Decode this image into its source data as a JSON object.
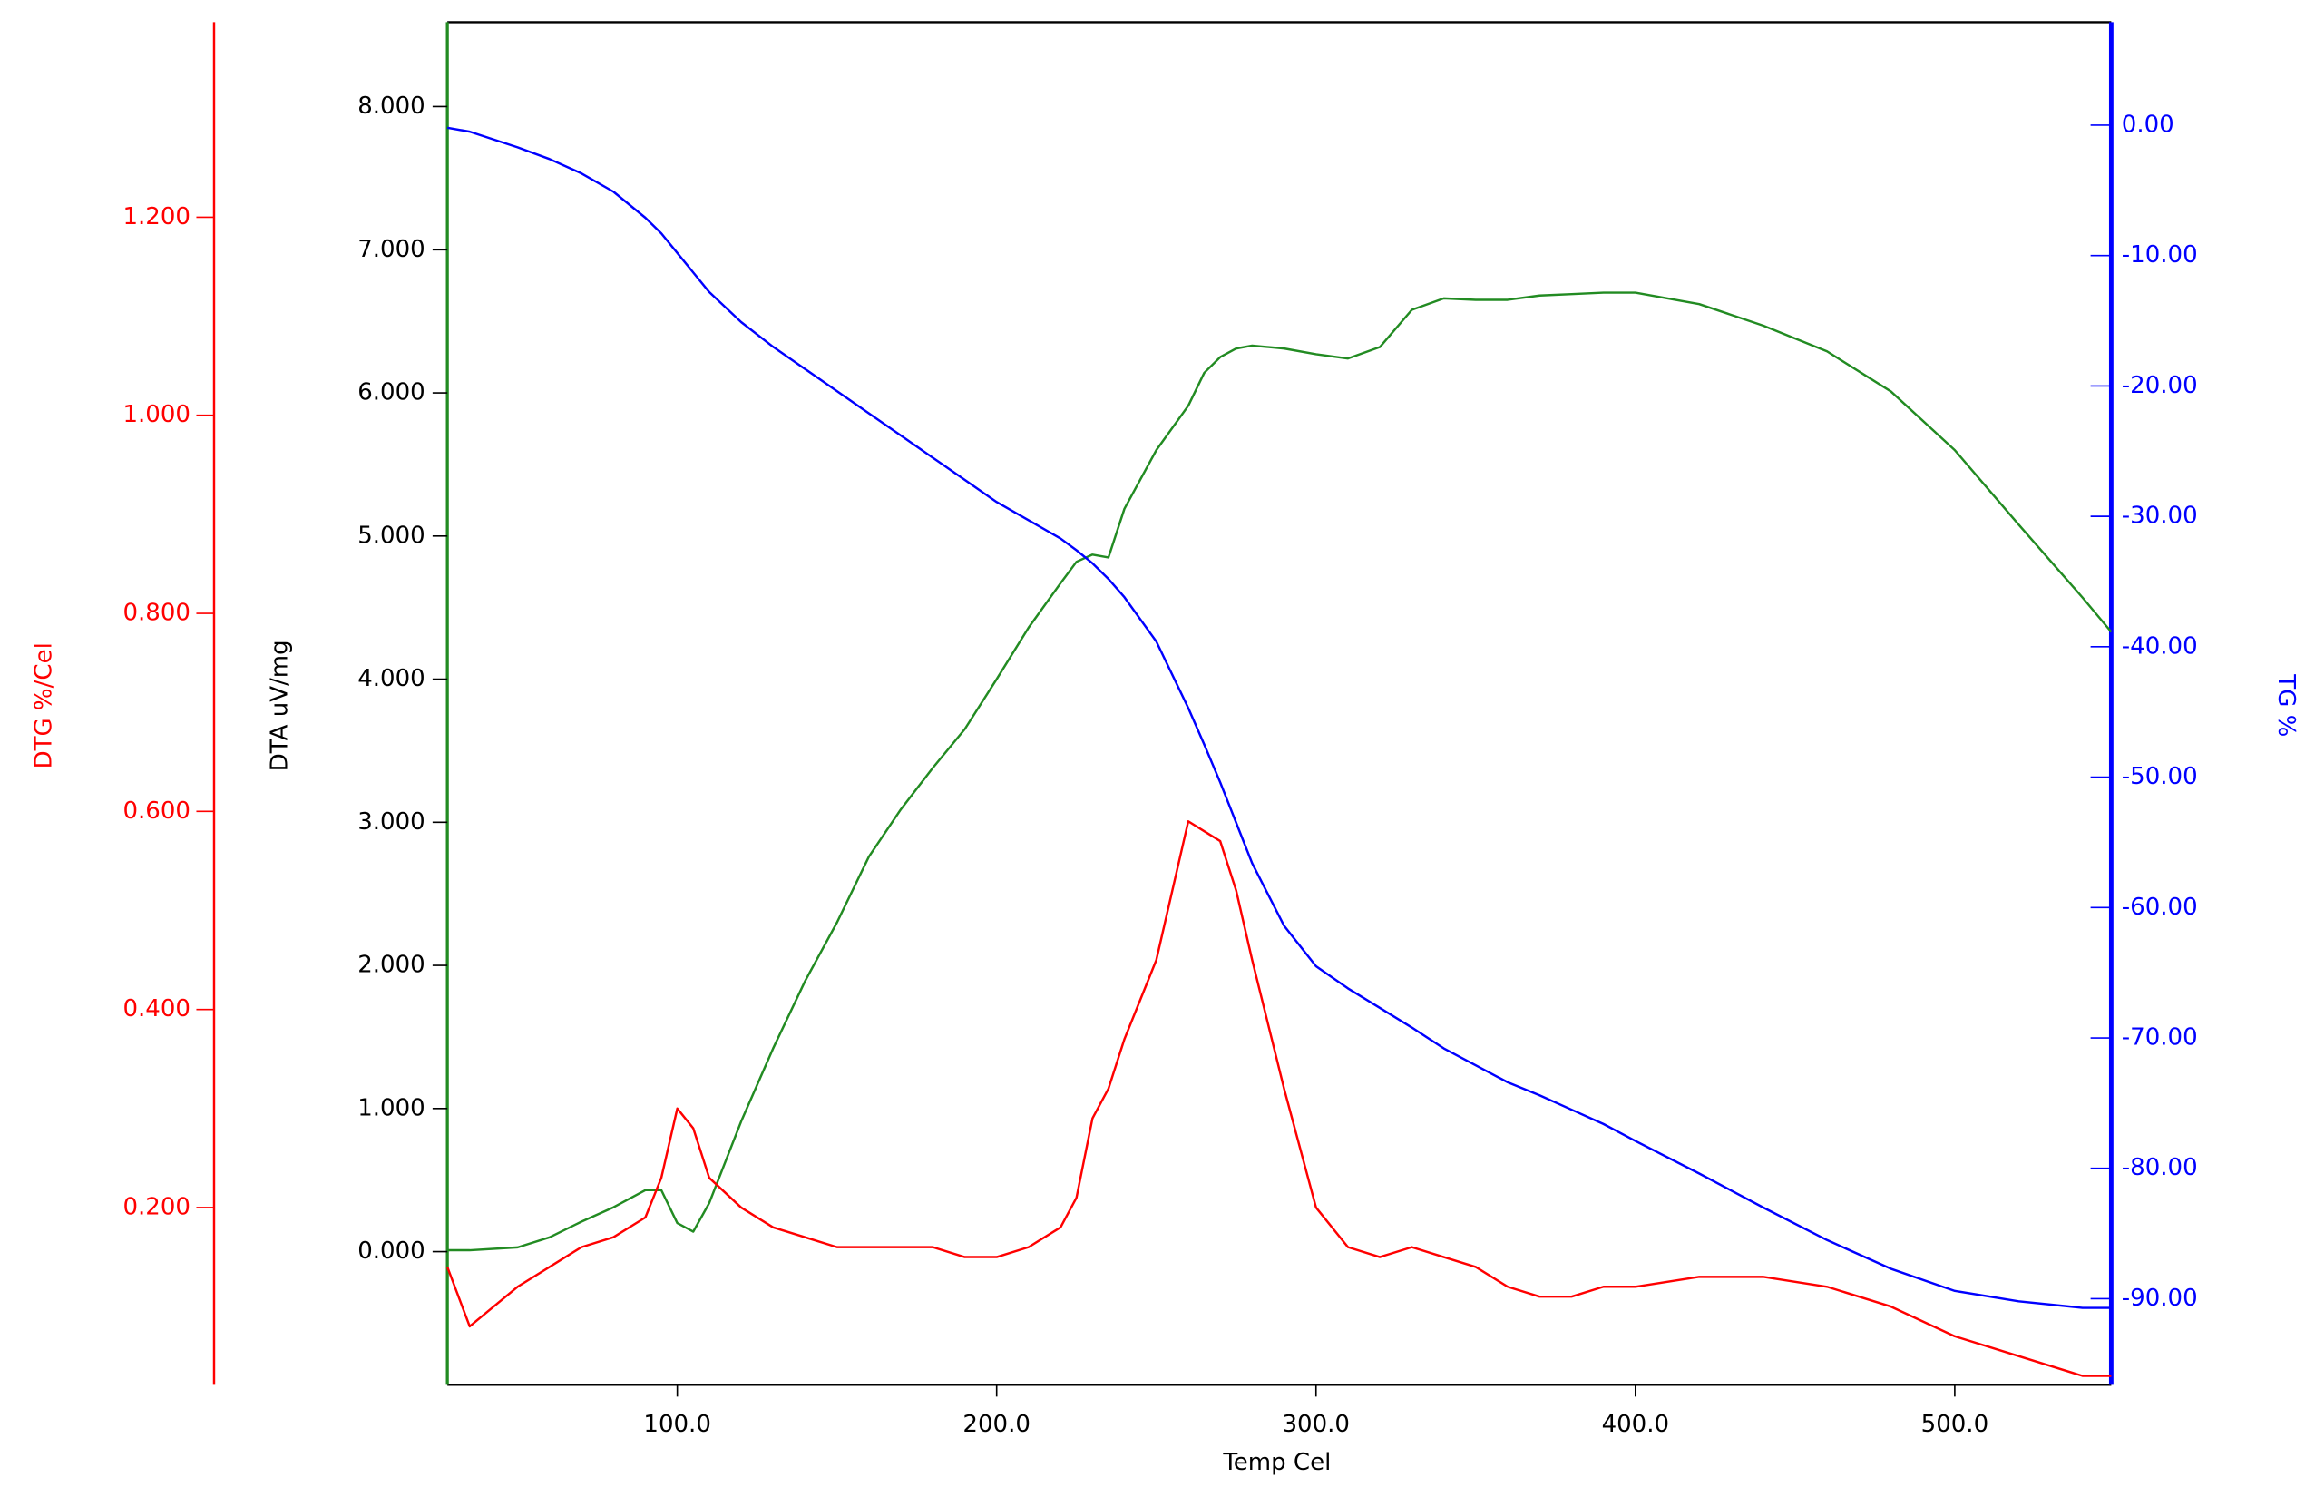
{
  "chart_data": {
    "type": "line",
    "x_label": "Temp Cel",
    "y_label": "DTA uV/mg",
    "y2_label": "TG %",
    "y3_label": "DTG %/Cel",
    "x": [
      28,
      35,
      50,
      60,
      70,
      80,
      90,
      95,
      100,
      105,
      110,
      120,
      130,
      140,
      150,
      160,
      170,
      180,
      190,
      200,
      210,
      220,
      225,
      230,
      235,
      240,
      250,
      260,
      265,
      270,
      275,
      280,
      290,
      300,
      310,
      320,
      330,
      340,
      350,
      360,
      370,
      380,
      390,
      400,
      420,
      440,
      460,
      480,
      500,
      520,
      540,
      549
    ],
    "xlim": [
      28,
      549
    ],
    "xticks": [
      {
        "value": 100,
        "label": "100.0"
      },
      {
        "value": 200,
        "label": "200.0"
      },
      {
        "value": 300,
        "label": "300.0"
      },
      {
        "value": 400,
        "label": "400.0"
      },
      {
        "value": 500,
        "label": "500.0"
      }
    ],
    "ylim": [
      -0.93,
      8.59
    ],
    "yticks": [
      {
        "value": 0,
        "label": "0.000"
      },
      {
        "value": 1,
        "label": "1.000"
      },
      {
        "value": 2,
        "label": "2.000"
      },
      {
        "value": 3,
        "label": "3.000"
      },
      {
        "value": 4,
        "label": "4.000"
      },
      {
        "value": 5,
        "label": "5.000"
      },
      {
        "value": 6,
        "label": "6.000"
      },
      {
        "value": 7,
        "label": "7.000"
      },
      {
        "value": 8,
        "label": "8.000"
      }
    ],
    "y2lim": [
      -96.6,
      7.9
    ],
    "y2ticks": [
      {
        "value": 0,
        "label": "0.00"
      },
      {
        "value": -10,
        "label": "-10.00"
      },
      {
        "value": -20,
        "label": "-20.00"
      },
      {
        "value": -30,
        "label": "-30.00"
      },
      {
        "value": -40,
        "label": "-40.00"
      },
      {
        "value": -50,
        "label": "-50.00"
      },
      {
        "value": -60,
        "label": "-60.00"
      },
      {
        "value": -70,
        "label": "-70.00"
      },
      {
        "value": -80,
        "label": "-80.00"
      },
      {
        "value": -90,
        "label": "-90.00"
      }
    ],
    "y3lim": [
      0.021,
      1.397
    ],
    "y3ticks": [
      {
        "value": 0.2,
        "label": "0.200"
      },
      {
        "value": 0.4,
        "label": "0.400"
      },
      {
        "value": 0.6,
        "label": "0.600"
      },
      {
        "value": 0.8,
        "label": "0.800"
      },
      {
        "value": 1.0,
        "label": "1.000"
      },
      {
        "value": 1.2,
        "label": "1.200"
      }
    ],
    "series": [
      {
        "color": "#228b22",
        "axis": "y",
        "values": [
          0.01,
          0.01,
          0.03,
          0.1,
          0.21,
          0.31,
          0.43,
          0.43,
          0.2,
          0.14,
          0.34,
          0.91,
          1.42,
          1.89,
          2.3,
          2.76,
          3.09,
          3.38,
          3.65,
          4.0,
          4.36,
          4.67,
          4.82,
          4.87,
          4.85,
          5.19,
          5.6,
          5.91,
          6.14,
          6.25,
          6.31,
          6.33,
          6.31,
          6.27,
          6.24,
          6.32,
          6.58,
          6.66,
          6.65,
          6.65,
          6.68,
          6.69,
          6.7,
          6.7,
          6.62,
          6.47,
          6.29,
          6.01,
          5.6,
          5.08,
          4.57,
          4.33
        ]
      },
      {
        "color": "#0000ff",
        "axis": "y2",
        "values": [
          -0.2,
          -0.5,
          -1.7,
          -2.6,
          -3.7,
          -5.1,
          -7.1,
          -8.3,
          -9.8,
          -11.3,
          -12.8,
          -15.1,
          -17.0,
          -18.7,
          -20.4,
          -22.1,
          -23.8,
          -25.5,
          -27.2,
          -28.9,
          -30.3,
          -31.7,
          -32.6,
          -33.6,
          -34.8,
          -36.2,
          -39.6,
          -44.7,
          -47.5,
          -50.4,
          -53.5,
          -56.6,
          -61.4,
          -64.5,
          -66.2,
          -67.7,
          -69.2,
          -70.8,
          -72.1,
          -73.4,
          -74.4,
          -75.5,
          -76.6,
          -77.9,
          -80.4,
          -83.0,
          -85.5,
          -87.7,
          -89.4,
          -90.2,
          -90.7,
          -90.7
        ]
      },
      {
        "color": "#ff0000",
        "axis": "y3",
        "values": [
          0.14,
          0.08,
          0.12,
          0.14,
          0.16,
          0.17,
          0.19,
          0.23,
          0.3,
          0.28,
          0.23,
          0.2,
          0.18,
          0.17,
          0.16,
          0.16,
          0.16,
          0.16,
          0.15,
          0.15,
          0.16,
          0.18,
          0.21,
          0.29,
          0.32,
          0.37,
          0.45,
          0.59,
          0.58,
          0.57,
          0.52,
          0.45,
          0.32,
          0.2,
          0.16,
          0.15,
          0.16,
          0.15,
          0.14,
          0.12,
          0.11,
          0.11,
          0.12,
          0.12,
          0.13,
          0.13,
          0.12,
          0.1,
          0.07,
          0.05,
          0.03,
          0.03
        ]
      }
    ]
  }
}
